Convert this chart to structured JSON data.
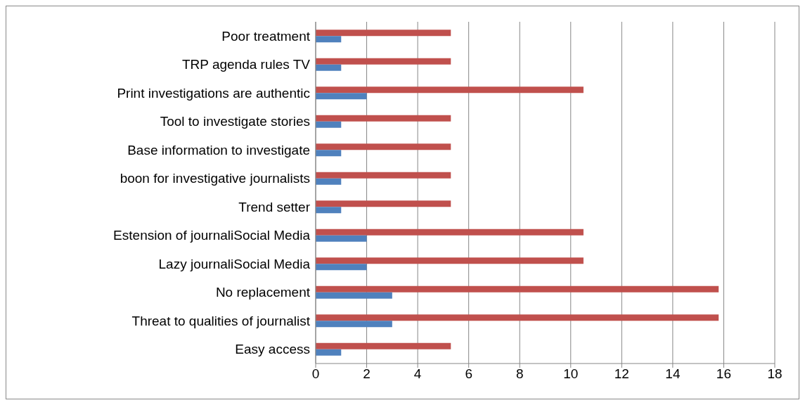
{
  "chart_data": {
    "type": "bar",
    "orientation": "horizontal",
    "categories": [
      "Poor treatment",
      "TRP agenda rules TV",
      "Print investigations are authentic",
      "Tool to investigate stories",
      "Base information to investigate",
      "boon for investigative journalists",
      "Trend setter",
      "Estension of journaliSocial Media",
      "Lazy journaliSocial Media",
      "No replacement",
      "Threat to qualities of journalist",
      "Easy access"
    ],
    "series": [
      {
        "color": "#c0504d",
        "values": [
          5.3,
          5.3,
          10.5,
          5.3,
          5.3,
          5.3,
          5.3,
          10.5,
          10.5,
          15.8,
          15.8,
          5.3
        ]
      },
      {
        "color": "#4f81bd",
        "values": [
          1,
          1,
          2,
          1,
          1,
          1,
          1,
          2,
          2,
          3,
          3,
          1
        ]
      }
    ],
    "xlim": [
      0,
      18
    ],
    "xticks": [
      0,
      2,
      4,
      6,
      8,
      10,
      12,
      14,
      16,
      18
    ],
    "grid": "x",
    "legend": false
  }
}
